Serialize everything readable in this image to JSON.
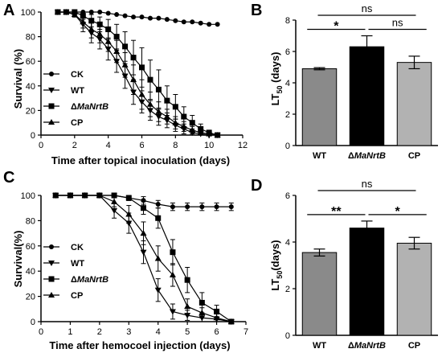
{
  "panels": [
    {
      "letter": "A",
      "kind": "line",
      "xlabel": "Time after topical inoculation (days)",
      "ylabel": "Survival (%)"
    },
    {
      "letter": "B",
      "kind": "bar",
      "ylabel": "LT",
      "ylabel_sub": "50",
      "ylabel_tail": " (days)"
    },
    {
      "letter": "C",
      "kind": "line",
      "xlabel": "Time after hemocoel injection (days)",
      "ylabel": "Survival(%)"
    },
    {
      "letter": "D",
      "kind": "bar",
      "ylabel": "LT",
      "ylabel_sub": "50",
      "ylabel_tail": "(days)"
    }
  ],
  "chart_data": [
    {
      "type": "line",
      "panel": "A",
      "xlabel": "Time after topical inoculation (days)",
      "ylabel": "Survival (%)",
      "xlim": [
        0,
        12
      ],
      "ylim": [
        0,
        100
      ],
      "xticks": [
        0,
        2,
        4,
        6,
        8,
        10,
        12
      ],
      "yticks": [
        0,
        20,
        40,
        60,
        80,
        100
      ],
      "legend_position": "left-middle",
      "series": [
        {
          "name": "CK",
          "marker": "circle",
          "x": [
            1,
            1.5,
            2,
            2.5,
            3,
            3.5,
            4,
            4.5,
            5,
            5.5,
            6,
            6.5,
            7,
            7.5,
            8,
            8.5,
            9,
            9.5,
            10,
            10.5
          ],
          "y": [
            100,
            100,
            100,
            100,
            100,
            100,
            99,
            98,
            97,
            96,
            96,
            95,
            95,
            94,
            93,
            92,
            92,
            91,
            90,
            90
          ]
        },
        {
          "name": "WT",
          "marker": "triangle-down",
          "x": [
            1,
            1.5,
            2,
            2.5,
            3,
            3.5,
            4,
            4.5,
            5,
            5.5,
            6,
            6.5,
            7,
            7.5,
            8,
            8.5,
            9,
            9.5,
            10,
            10.5
          ],
          "y": [
            100,
            100,
            98,
            90,
            83,
            78,
            70,
            60,
            48,
            35,
            27,
            20,
            15,
            12,
            8,
            5,
            2,
            1,
            0,
            0
          ],
          "err": [
            0,
            0,
            2,
            6,
            8,
            8,
            9,
            9,
            10,
            10,
            9,
            8,
            7,
            6,
            5,
            4,
            3,
            2,
            0,
            0
          ]
        },
        {
          "name": "ΔMaNrtB",
          "marker": "square",
          "x": [
            1,
            1.5,
            2,
            2.5,
            3,
            3.5,
            4,
            4.5,
            5,
            5.5,
            6,
            6.5,
            7,
            7.5,
            8,
            8.5,
            9,
            9.5,
            10,
            10.5
          ],
          "y": [
            100,
            100,
            100,
            97,
            93,
            90,
            86,
            80,
            72,
            63,
            55,
            45,
            37,
            28,
            23,
            15,
            10,
            5,
            2,
            0
          ],
          "err": [
            0,
            0,
            0,
            3,
            5,
            6,
            8,
            10,
            12,
            14,
            16,
            16,
            16,
            12,
            10,
            8,
            6,
            4,
            2,
            0
          ]
        },
        {
          "name": "CP",
          "marker": "triangle-up",
          "x": [
            1,
            1.5,
            2,
            2.5,
            3,
            3.5,
            4,
            4.5,
            5,
            5.5,
            6,
            6.5,
            7,
            7.5,
            8,
            8.5,
            9,
            9.5,
            10,
            10.5
          ],
          "y": [
            100,
            100,
            98,
            92,
            86,
            82,
            76,
            68,
            57,
            45,
            33,
            25,
            19,
            15,
            10,
            7,
            4,
            2,
            1,
            0
          ],
          "err": [
            0,
            0,
            2,
            5,
            7,
            7,
            8,
            9,
            10,
            12,
            12,
            10,
            8,
            6,
            5,
            4,
            3,
            2,
            1,
            0
          ]
        }
      ]
    },
    {
      "type": "bar",
      "panel": "B",
      "ylabel": "LT50 (days)",
      "ylim": [
        0,
        8
      ],
      "yticks": [
        0,
        2,
        4,
        6,
        8
      ],
      "categories": [
        "WT",
        "ΔMaNrtB",
        "CP"
      ],
      "values": [
        4.9,
        6.3,
        5.3
      ],
      "errors": [
        0.07,
        0.7,
        0.4
      ],
      "colors": [
        "#8a8a8a",
        "#000000",
        "#b2b2b2"
      ],
      "significance": [
        {
          "pair": [
            "WT",
            "CP"
          ],
          "label": "ns",
          "level": 2
        },
        {
          "pair": [
            "WT",
            "ΔMaNrtB"
          ],
          "label": "*",
          "level": 1
        },
        {
          "pair": [
            "ΔMaNrtB",
            "CP"
          ],
          "label": "ns",
          "level": 1
        }
      ]
    },
    {
      "type": "line",
      "panel": "C",
      "xlabel": "Time after hemocoel injection (days)",
      "ylabel": "Survival(%)",
      "xlim": [
        0,
        7
      ],
      "ylim": [
        0,
        100
      ],
      "xticks": [
        0,
        1,
        2,
        3,
        4,
        5,
        6,
        7
      ],
      "yticks": [
        0,
        20,
        40,
        60,
        80,
        100
      ],
      "legend_position": "left-middle",
      "series": [
        {
          "name": "CK",
          "marker": "circle",
          "x": [
            0.5,
            1,
            1.5,
            2,
            2.5,
            3,
            3.5,
            4,
            4.5,
            5,
            5.5,
            6,
            6.5
          ],
          "y": [
            100,
            100,
            100,
            100,
            100,
            98,
            96,
            93,
            91,
            91,
            91,
            91,
            91
          ],
          "err": [
            0,
            0,
            0,
            0,
            0,
            2,
            3,
            3,
            3,
            3,
            3,
            3,
            3
          ]
        },
        {
          "name": "WT",
          "marker": "triangle-down",
          "x": [
            0.5,
            1,
            1.5,
            2,
            2.5,
            3,
            3.5,
            4,
            4.5,
            5,
            5.5,
            6,
            6.5
          ],
          "y": [
            100,
            100,
            100,
            100,
            88,
            78,
            55,
            25,
            8,
            5,
            3,
            2,
            0
          ],
          "err": [
            0,
            0,
            0,
            0,
            6,
            8,
            9,
            9,
            6,
            4,
            3,
            2,
            0
          ]
        },
        {
          "name": "ΔMaNrtB",
          "marker": "square",
          "x": [
            0.5,
            1,
            1.5,
            2,
            2.5,
            3,
            3.5,
            4,
            4.5,
            5,
            5.5,
            6,
            6.5
          ],
          "y": [
            100,
            100,
            100,
            100,
            100,
            98,
            90,
            82,
            55,
            33,
            15,
            8,
            0
          ],
          "err": [
            0,
            0,
            0,
            0,
            0,
            2,
            5,
            8,
            10,
            10,
            8,
            5,
            0
          ]
        },
        {
          "name": "CP",
          "marker": "triangle-up",
          "x": [
            0.5,
            1,
            1.5,
            2,
            2.5,
            3,
            3.5,
            4,
            4.5,
            5,
            5.5,
            6,
            6.5
          ],
          "y": [
            100,
            100,
            100,
            100,
            95,
            85,
            70,
            50,
            37,
            12,
            7,
            3,
            0
          ],
          "err": [
            0,
            0,
            0,
            0,
            4,
            7,
            9,
            10,
            9,
            6,
            4,
            3,
            0
          ]
        }
      ]
    },
    {
      "type": "bar",
      "panel": "D",
      "ylabel": "LT50(days)",
      "ylim": [
        0,
        6
      ],
      "yticks": [
        0,
        2,
        4,
        6
      ],
      "categories": [
        "WT",
        "ΔMaNrtB",
        "CP"
      ],
      "values": [
        3.55,
        4.6,
        3.95
      ],
      "errors": [
        0.15,
        0.3,
        0.25
      ],
      "colors": [
        "#8a8a8a",
        "#000000",
        "#b2b2b2"
      ],
      "significance": [
        {
          "pair": [
            "WT",
            "CP"
          ],
          "label": "ns",
          "level": 2
        },
        {
          "pair": [
            "WT",
            "ΔMaNrtB"
          ],
          "label": "**",
          "level": 1
        },
        {
          "pair": [
            "ΔMaNrtB",
            "CP"
          ],
          "label": "*",
          "level": 1
        }
      ]
    }
  ]
}
